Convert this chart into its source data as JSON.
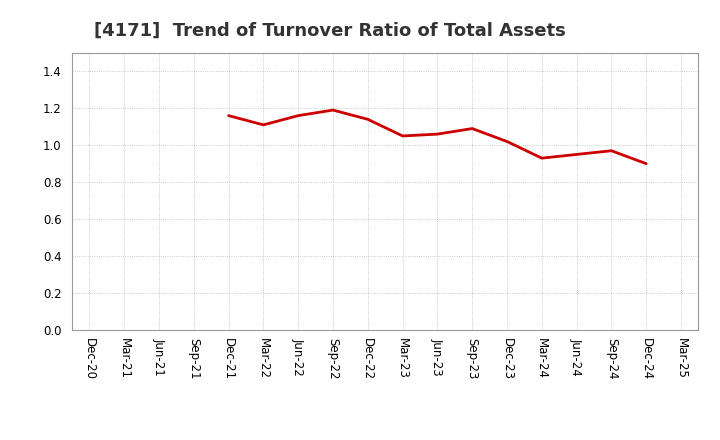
{
  "title": "[4171]  Trend of Turnover Ratio of Total Assets",
  "x_labels": [
    "Dec-20",
    "Mar-21",
    "Jun-21",
    "Sep-21",
    "Dec-21",
    "Mar-22",
    "Jun-22",
    "Sep-22",
    "Dec-22",
    "Mar-23",
    "Jun-23",
    "Sep-23",
    "Dec-23",
    "Mar-24",
    "Jun-24",
    "Sep-24",
    "Dec-24",
    "Mar-25"
  ],
  "y_values": [
    null,
    null,
    null,
    null,
    1.16,
    1.11,
    1.16,
    1.19,
    1.14,
    1.05,
    1.06,
    1.09,
    1.02,
    0.93,
    0.95,
    0.97,
    0.9,
    null
  ],
  "line_color": "#cc0000",
  "line_width": 2.0,
  "ylim": [
    0.0,
    1.5
  ],
  "yticks": [
    0.0,
    0.2,
    0.4,
    0.6,
    0.8,
    1.0,
    1.2,
    1.4
  ],
  "grid_color": "#aaaaaa",
  "background_color": "#ffffff",
  "title_fontsize": 13,
  "tick_fontsize": 8.5,
  "title_color": "#333333"
}
